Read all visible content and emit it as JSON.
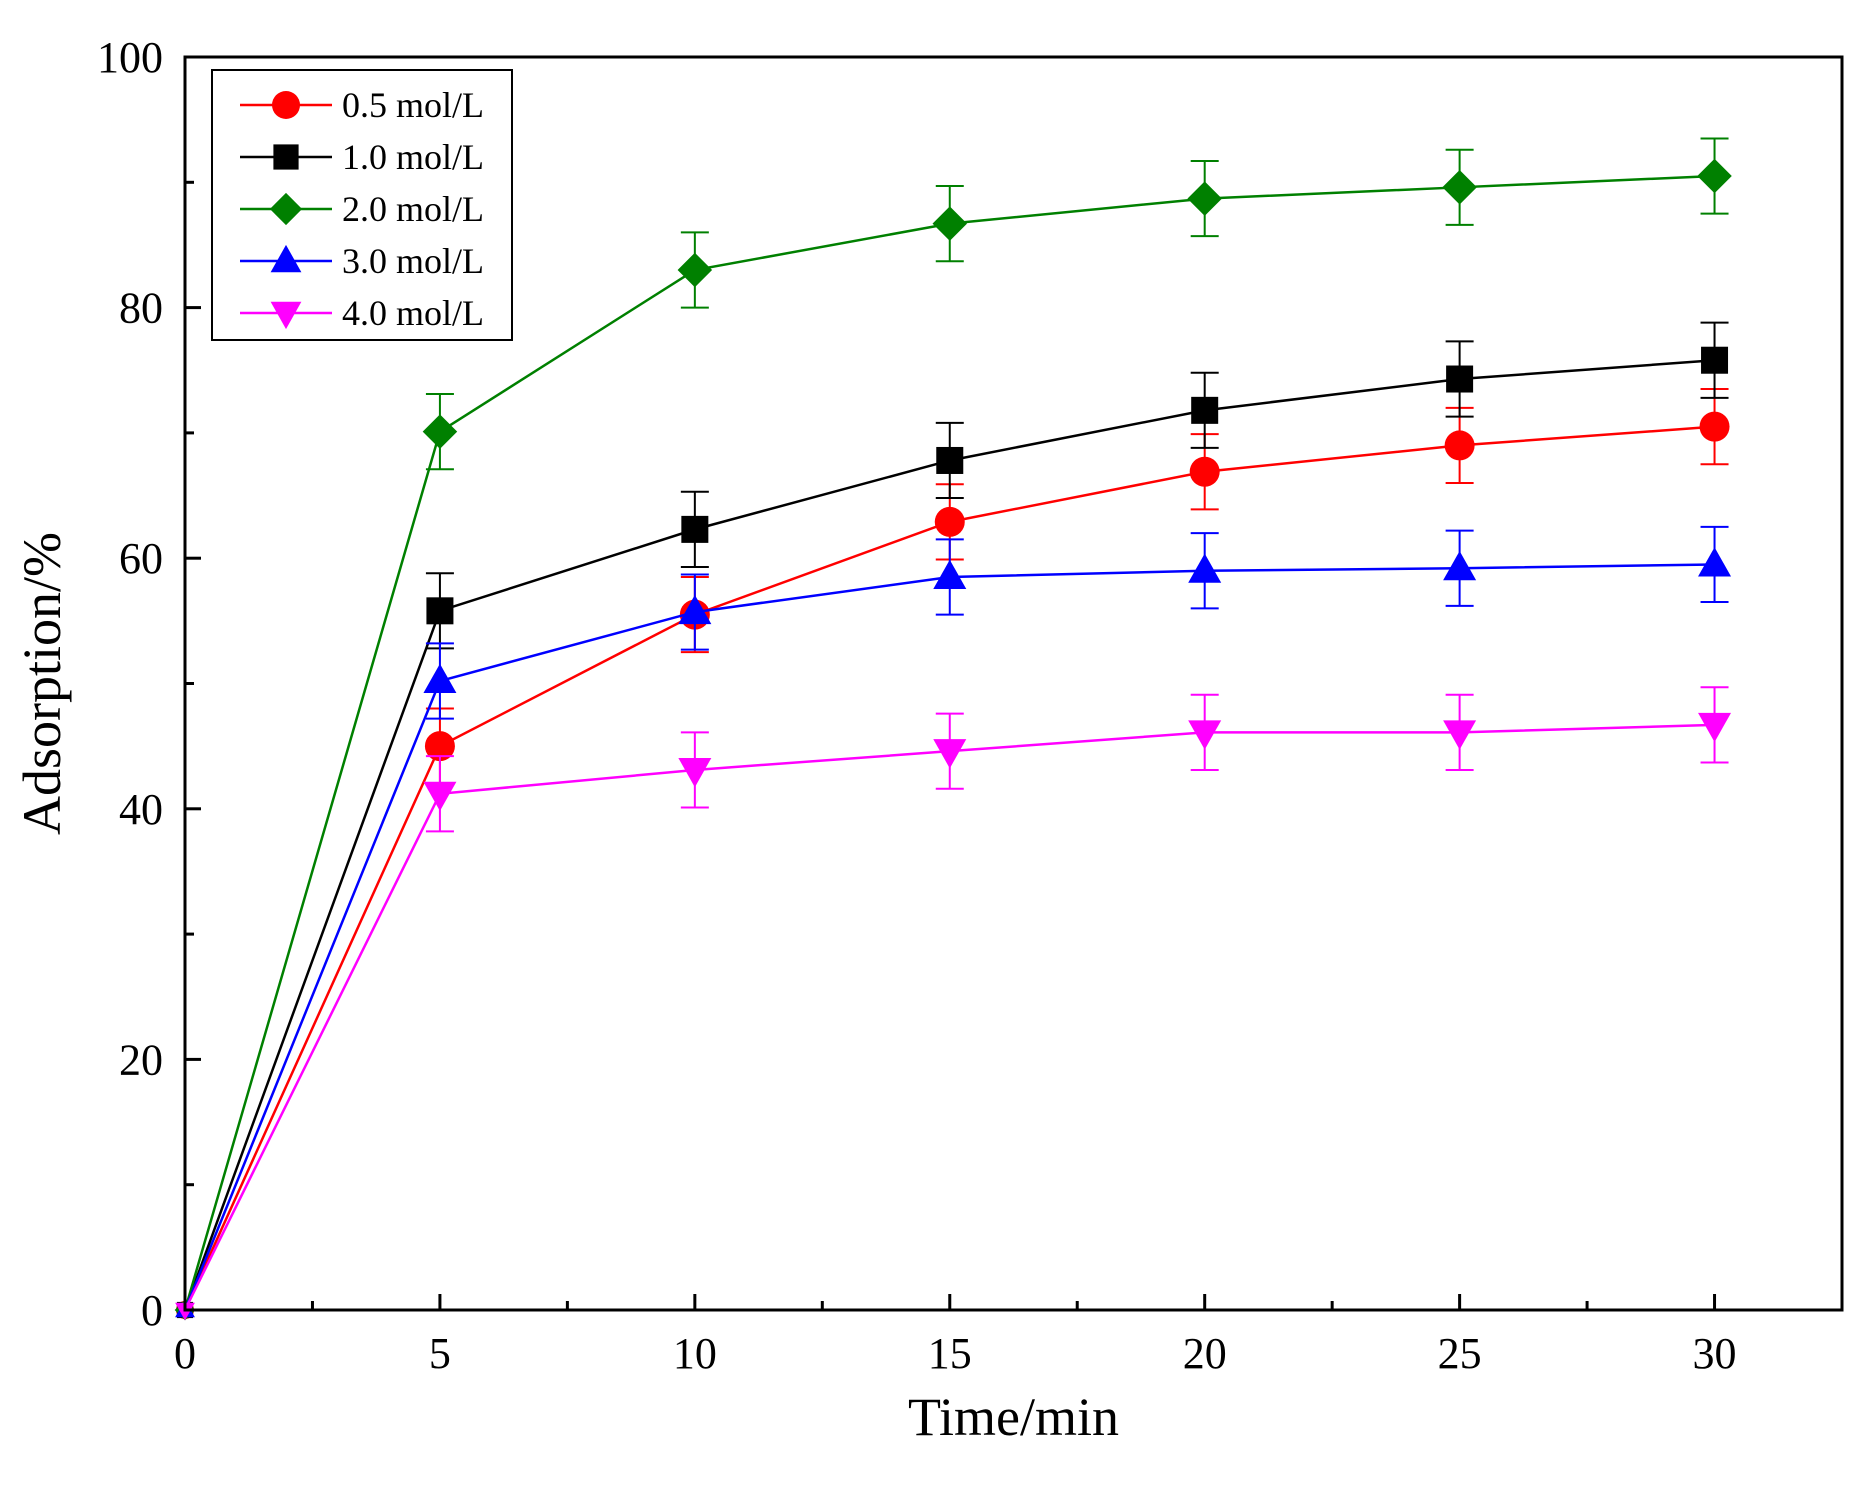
{
  "chart_data": {
    "type": "line",
    "title": "",
    "xlabel": "Time/min",
    "ylabel": "Adsorption/%",
    "xlim": [
      0,
      32.5
    ],
    "ylim": [
      0,
      100
    ],
    "x_ticks": [
      0,
      5,
      10,
      15,
      20,
      25,
      30
    ],
    "x_tick_labels": [
      "0",
      "5",
      "10",
      "15",
      "20",
      "25",
      "30"
    ],
    "x_minor_ticks": [
      2.5,
      7.5,
      12.5,
      17.5,
      22.5,
      27.5
    ],
    "y_ticks": [
      0,
      20,
      40,
      60,
      80,
      100
    ],
    "y_tick_labels": [
      "0",
      "20",
      "40",
      "60",
      "80",
      "100"
    ],
    "y_minor_ticks": [
      10,
      30,
      50,
      70,
      90
    ],
    "x": [
      0,
      5,
      10,
      15,
      20,
      25,
      30
    ],
    "legend_position": "top-left",
    "series": [
      {
        "name": "0.5 mol/L",
        "color": "#ff0000",
        "marker": "circle",
        "values": [
          0,
          45.0,
          55.5,
          62.9,
          66.9,
          69.0,
          70.5
        ],
        "errors": [
          0,
          3.0,
          3.0,
          3.0,
          3.0,
          3.0,
          3.0
        ]
      },
      {
        "name": "1.0 mol/L",
        "color": "#000000",
        "marker": "square",
        "values": [
          0,
          55.8,
          62.3,
          67.8,
          71.8,
          74.3,
          75.8
        ],
        "errors": [
          0,
          3.0,
          3.0,
          3.0,
          3.0,
          3.0,
          3.0
        ]
      },
      {
        "name": "2.0 mol/L",
        "color": "#008000",
        "marker": "diamond",
        "values": [
          0,
          70.1,
          83.0,
          86.7,
          88.7,
          89.6,
          90.5
        ],
        "errors": [
          0,
          3.0,
          3.0,
          3.0,
          3.0,
          3.0,
          3.0
        ]
      },
      {
        "name": "3.0 mol/L",
        "color": "#0000ff",
        "marker": "triangle-up",
        "values": [
          0,
          50.2,
          55.7,
          58.5,
          59.0,
          59.2,
          59.5
        ],
        "errors": [
          0,
          3.0,
          3.0,
          3.0,
          3.0,
          3.0,
          3.0
        ]
      },
      {
        "name": "4.0 mol/L",
        "color": "#ff00ff",
        "marker": "triangle-down",
        "values": [
          0,
          41.2,
          43.1,
          44.6,
          46.1,
          46.1,
          46.7
        ],
        "errors": [
          0,
          3.0,
          3.0,
          3.0,
          3.0,
          3.0,
          3.0
        ]
      }
    ]
  }
}
